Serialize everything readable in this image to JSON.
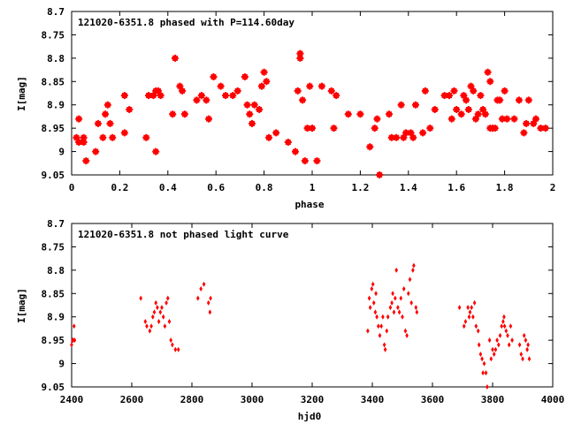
{
  "chart_data": [
    {
      "type": "scatter",
      "title": "121020-6351.8 phased with P=114.60day",
      "xlabel": "phase",
      "ylabel": "I[mag]",
      "xlim": [
        0,
        2
      ],
      "ylim": [
        8.7,
        9.05
      ],
      "y_inverted": true,
      "xticks": [
        "0",
        "0.2",
        "0.4",
        "0.6",
        "0.8",
        "1",
        "1.2",
        "1.4",
        "1.6",
        "1.8",
        "2"
      ],
      "yticks": [
        "8.7",
        "8.75",
        "8.8",
        "8.85",
        "8.9",
        "8.95",
        "9",
        "9.05"
      ],
      "grid": false,
      "marker_color": "#ff0000",
      "series": [
        {
          "points": [
            [
              0.02,
              8.97
            ],
            [
              0.03,
              8.98
            ],
            [
              0.03,
              8.93
            ],
            [
              0.05,
              8.98
            ],
            [
              0.05,
              8.97
            ],
            [
              0.06,
              9.02
            ],
            [
              0.1,
              9.0
            ],
            [
              0.11,
              8.94
            ],
            [
              0.13,
              8.97
            ],
            [
              0.14,
              8.92
            ],
            [
              0.15,
              8.9
            ],
            [
              0.16,
              8.94
            ],
            [
              0.17,
              8.97
            ],
            [
              0.22,
              8.96
            ],
            [
              0.22,
              8.88
            ],
            [
              0.24,
              8.91
            ],
            [
              0.31,
              8.97
            ],
            [
              0.32,
              8.88
            ],
            [
              0.34,
              8.88
            ],
            [
              0.35,
              9.0
            ],
            [
              0.35,
              8.87
            ],
            [
              0.36,
              8.87
            ],
            [
              0.37,
              8.88
            ],
            [
              0.42,
              8.92
            ],
            [
              0.43,
              8.8
            ],
            [
              0.45,
              8.86
            ],
            [
              0.46,
              8.87
            ],
            [
              0.47,
              8.92
            ],
            [
              0.52,
              8.89
            ],
            [
              0.54,
              8.88
            ],
            [
              0.56,
              8.89
            ],
            [
              0.57,
              8.93
            ],
            [
              0.59,
              8.84
            ],
            [
              0.62,
              8.86
            ],
            [
              0.64,
              8.88
            ],
            [
              0.67,
              8.88
            ],
            [
              0.69,
              8.87
            ],
            [
              0.72,
              8.84
            ],
            [
              0.73,
              8.9
            ],
            [
              0.74,
              8.92
            ],
            [
              0.75,
              8.94
            ],
            [
              0.76,
              8.9
            ],
            [
              0.78,
              8.91
            ],
            [
              0.79,
              8.86
            ],
            [
              0.8,
              8.83
            ],
            [
              0.81,
              8.85
            ],
            [
              0.82,
              8.97
            ],
            [
              0.85,
              8.96
            ],
            [
              0.9,
              8.98
            ],
            [
              0.93,
              9.0
            ],
            [
              0.94,
              8.87
            ],
            [
              0.95,
              8.79
            ],
            [
              0.95,
              8.8
            ],
            [
              0.96,
              8.89
            ],
            [
              0.97,
              9.02
            ],
            [
              0.98,
              8.95
            ],
            [
              0.99,
              8.86
            ],
            [
              1.0,
              8.95
            ],
            [
              1.02,
              9.02
            ],
            [
              1.04,
              8.86
            ],
            [
              1.08,
              8.87
            ],
            [
              1.1,
              8.88
            ],
            [
              1.09,
              8.95
            ],
            [
              1.15,
              8.92
            ],
            [
              1.2,
              8.92
            ],
            [
              1.24,
              8.99
            ],
            [
              1.26,
              8.95
            ],
            [
              1.27,
              8.93
            ],
            [
              1.28,
              9.05
            ],
            [
              1.32,
              8.92
            ],
            [
              1.33,
              8.97
            ],
            [
              1.35,
              8.97
            ],
            [
              1.37,
              8.9
            ],
            [
              1.38,
              8.97
            ],
            [
              1.39,
              8.96
            ],
            [
              1.41,
              8.96
            ],
            [
              1.42,
              8.97
            ],
            [
              1.43,
              8.9
            ],
            [
              1.46,
              8.96
            ],
            [
              1.47,
              8.87
            ],
            [
              1.49,
              8.95
            ],
            [
              1.51,
              8.91
            ],
            [
              1.55,
              8.88
            ],
            [
              1.57,
              8.88
            ],
            [
              1.58,
              8.93
            ],
            [
              1.59,
              8.87
            ],
            [
              1.6,
              8.91
            ],
            [
              1.62,
              8.92
            ],
            [
              1.63,
              8.88
            ],
            [
              1.64,
              8.89
            ],
            [
              1.65,
              8.91
            ],
            [
              1.66,
              8.86
            ],
            [
              1.67,
              8.87
            ],
            [
              1.68,
              8.93
            ],
            [
              1.69,
              8.92
            ],
            [
              1.7,
              8.88
            ],
            [
              1.71,
              8.91
            ],
            [
              1.72,
              8.92
            ],
            [
              1.73,
              8.83
            ],
            [
              1.74,
              8.85
            ],
            [
              1.74,
              8.95
            ],
            [
              1.75,
              8.95
            ],
            [
              1.76,
              8.95
            ],
            [
              1.77,
              8.89
            ],
            [
              1.78,
              8.89
            ],
            [
              1.79,
              8.93
            ],
            [
              1.8,
              8.87
            ],
            [
              1.81,
              8.93
            ],
            [
              1.84,
              8.93
            ],
            [
              1.86,
              8.89
            ],
            [
              1.88,
              8.96
            ],
            [
              1.89,
              8.94
            ],
            [
              1.9,
              8.89
            ],
            [
              1.92,
              8.94
            ],
            [
              1.93,
              8.93
            ],
            [
              1.95,
              8.95
            ],
            [
              1.97,
              8.95
            ]
          ]
        }
      ]
    },
    {
      "type": "scatter",
      "title": "121020-6351.8 not phased light curve",
      "xlabel": "hjd0",
      "ylabel": "I[mag]",
      "xlim": [
        2400,
        4000
      ],
      "ylim": [
        8.7,
        9.05
      ],
      "y_inverted": true,
      "xticks": [
        "2400",
        "2600",
        "2800",
        "3000",
        "3200",
        "3400",
        "3600",
        "3800",
        "4000"
      ],
      "yticks": [
        "8.7",
        "8.75",
        "8.8",
        "8.85",
        "8.9",
        "8.95",
        "9",
        "9.05"
      ],
      "grid": false,
      "marker_color": "#ff0000",
      "series": [
        {
          "points": [
            [
              2400,
              8.96
            ],
            [
              2403,
              8.95
            ],
            [
              2405,
              8.95
            ],
            [
              2408,
              8.92
            ],
            [
              2410,
              8.95
            ],
            [
              2630,
              8.86
            ],
            [
              2645,
              8.91
            ],
            [
              2650,
              8.92
            ],
            [
              2660,
              8.93
            ],
            [
              2665,
              8.92
            ],
            [
              2670,
              8.9
            ],
            [
              2675,
              8.89
            ],
            [
              2680,
              8.87
            ],
            [
              2685,
              8.88
            ],
            [
              2690,
              8.91
            ],
            [
              2695,
              8.89
            ],
            [
              2700,
              8.88
            ],
            [
              2705,
              8.9
            ],
            [
              2710,
              8.92
            ],
            [
              2715,
              8.87
            ],
            [
              2720,
              8.86
            ],
            [
              2725,
              8.91
            ],
            [
              2730,
              8.95
            ],
            [
              2735,
              8.96
            ],
            [
              2745,
              8.97
            ],
            [
              2755,
              8.97
            ],
            [
              2820,
              8.86
            ],
            [
              2830,
              8.84
            ],
            [
              2840,
              8.83
            ],
            [
              2855,
              8.87
            ],
            [
              2860,
              8.89
            ],
            [
              2862,
              8.86
            ],
            [
              3385,
              8.93
            ],
            [
              3390,
              8.86
            ],
            [
              3393,
              8.88
            ],
            [
              3398,
              8.84
            ],
            [
              3402,
              8.83
            ],
            [
              3405,
              8.87
            ],
            [
              3410,
              8.89
            ],
            [
              3412,
              8.85
            ],
            [
              3415,
              8.9
            ],
            [
              3420,
              8.92
            ],
            [
              3425,
              8.94
            ],
            [
              3430,
              8.92
            ],
            [
              3435,
              8.9
            ],
            [
              3440,
              8.96
            ],
            [
              3443,
              8.97
            ],
            [
              3448,
              8.93
            ],
            [
              3452,
              8.9
            ],
            [
              3460,
              8.88
            ],
            [
              3465,
              8.87
            ],
            [
              3468,
              8.85
            ],
            [
              3472,
              8.89
            ],
            [
              3476,
              8.86
            ],
            [
              3480,
              8.8
            ],
            [
              3485,
              8.88
            ],
            [
              3490,
              8.89
            ],
            [
              3495,
              8.86
            ],
            [
              3500,
              8.9
            ],
            [
              3505,
              8.84
            ],
            [
              3510,
              8.93
            ],
            [
              3515,
              8.94
            ],
            [
              3520,
              8.85
            ],
            [
              3525,
              8.82
            ],
            [
              3530,
              8.87
            ],
            [
              3535,
              8.8
            ],
            [
              3538,
              8.79
            ],
            [
              3545,
              8.88
            ],
            [
              3548,
              8.89
            ],
            [
              3690,
              8.88
            ],
            [
              3705,
              8.92
            ],
            [
              3710,
              8.91
            ],
            [
              3718,
              8.88
            ],
            [
              3722,
              8.9
            ],
            [
              3725,
              8.89
            ],
            [
              3730,
              8.88
            ],
            [
              3735,
              8.9
            ],
            [
              3740,
              8.87
            ],
            [
              3745,
              8.92
            ],
            [
              3752,
              8.93
            ],
            [
              3755,
              8.96
            ],
            [
              3760,
              8.98
            ],
            [
              3765,
              8.99
            ],
            [
              3768,
              9.02
            ],
            [
              3772,
              9.0
            ],
            [
              3778,
              9.02
            ],
            [
              3782,
              9.05
            ],
            [
              3790,
              8.95
            ],
            [
              3795,
              8.99
            ],
            [
              3800,
              8.97
            ],
            [
              3805,
              8.98
            ],
            [
              3810,
              8.97
            ],
            [
              3815,
              8.95
            ],
            [
              3820,
              8.96
            ],
            [
              3825,
              8.94
            ],
            [
              3830,
              8.92
            ],
            [
              3835,
              8.91
            ],
            [
              3838,
              8.9
            ],
            [
              3840,
              8.92
            ],
            [
              3845,
              8.93
            ],
            [
              3850,
              8.94
            ],
            [
              3855,
              8.96
            ],
            [
              3860,
              8.92
            ],
            [
              3865,
              8.95
            ],
            [
              3890,
              8.96
            ],
            [
              3895,
              8.98
            ],
            [
              3900,
              8.99
            ],
            [
              3905,
              8.94
            ],
            [
              3910,
              8.95
            ],
            [
              3915,
              8.97
            ],
            [
              3918,
              8.96
            ],
            [
              3922,
              8.99
            ]
          ]
        }
      ]
    }
  ]
}
